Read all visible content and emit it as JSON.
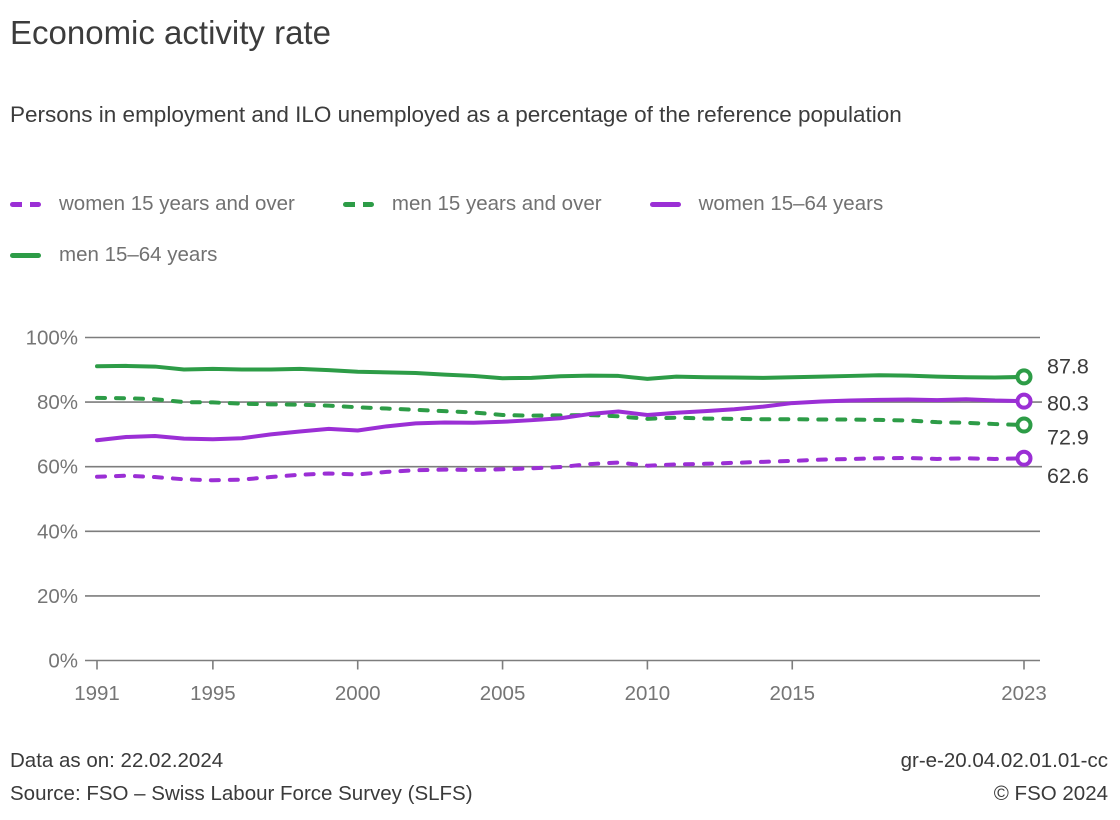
{
  "title": "Economic activity rate",
  "subtitle": "Persons in employment and ILO unemployed as a percentage of the reference population",
  "colors": {
    "women": "#9b2fd5",
    "men": "#2d9c47",
    "grid": "#7d7d7d",
    "tick_text": "#757575",
    "label_text": "#3c3c3c"
  },
  "legend": {
    "items": [
      {
        "label": "women 15 years and over",
        "color": "#9b2fd5",
        "style": "dashed"
      },
      {
        "label": "men 15 years and over",
        "color": "#2d9c47",
        "style": "dashed"
      },
      {
        "label": "women 15–64 years",
        "color": "#9b2fd5",
        "style": "solid"
      },
      {
        "label": "men 15–64 years",
        "color": "#2d9c47",
        "style": "solid"
      }
    ]
  },
  "chart_data": {
    "type": "line",
    "title": "Economic activity rate",
    "x": [
      1991,
      1992,
      1993,
      1994,
      1995,
      1996,
      1997,
      1998,
      1999,
      2000,
      2001,
      2002,
      2003,
      2004,
      2005,
      2006,
      2007,
      2008,
      2009,
      2010,
      2011,
      2012,
      2013,
      2014,
      2015,
      2016,
      2017,
      2018,
      2019,
      2020,
      2021,
      2022,
      2023
    ],
    "ylim": [
      0,
      100
    ],
    "grid": "horizontal",
    "legend_position": "top",
    "y_ticks": [
      {
        "value": 0,
        "label": "0%"
      },
      {
        "value": 20,
        "label": "20%"
      },
      {
        "value": 40,
        "label": "40%"
      },
      {
        "value": 60,
        "label": "60%"
      },
      {
        "value": 80,
        "label": "80%"
      },
      {
        "value": 100,
        "label": "100%"
      }
    ],
    "x_ticks": [
      {
        "value": 1991,
        "label": "1991"
      },
      {
        "value": 1995,
        "label": "1995"
      },
      {
        "value": 2000,
        "label": "2000"
      },
      {
        "value": 2005,
        "label": "2005"
      },
      {
        "value": 2010,
        "label": "2010"
      },
      {
        "value": 2015,
        "label": "2015"
      },
      {
        "value": 2023,
        "label": "2023"
      }
    ],
    "series": [
      {
        "name": "women 15 years and over",
        "color": "#9b2fd5",
        "dashed": true,
        "end_label": "62.6",
        "values": [
          56.9,
          57.2,
          56.8,
          56.1,
          55.8,
          56.0,
          56.8,
          57.5,
          57.9,
          57.6,
          58.4,
          58.9,
          59.1,
          59.0,
          59.2,
          59.5,
          59.9,
          60.8,
          61.3,
          60.3,
          60.7,
          60.9,
          61.2,
          61.5,
          61.8,
          62.2,
          62.4,
          62.6,
          62.7,
          62.4,
          62.6,
          62.4,
          62.6
        ]
      },
      {
        "name": "men 15 years and over",
        "color": "#2d9c47",
        "dashed": true,
        "end_label": "72.9",
        "values": [
          81.3,
          81.2,
          80.9,
          80.0,
          79.9,
          79.5,
          79.3,
          79.2,
          78.9,
          78.4,
          78.0,
          77.6,
          77.2,
          76.8,
          76.0,
          75.8,
          75.9,
          76.0,
          75.6,
          74.8,
          75.2,
          74.9,
          74.8,
          74.7,
          74.7,
          74.6,
          74.6,
          74.5,
          74.3,
          73.8,
          73.6,
          73.2,
          72.9
        ]
      },
      {
        "name": "women 15–64 years",
        "color": "#9b2fd5",
        "dashed": false,
        "end_label": "80.3",
        "values": [
          68.2,
          69.2,
          69.5,
          68.7,
          68.5,
          68.8,
          70.0,
          70.9,
          71.7,
          71.2,
          72.5,
          73.4,
          73.7,
          73.6,
          73.9,
          74.4,
          75.0,
          76.3,
          77.1,
          76.0,
          76.7,
          77.2,
          77.8,
          78.6,
          79.7,
          80.2,
          80.5,
          80.7,
          80.8,
          80.6,
          80.9,
          80.5,
          80.3
        ]
      },
      {
        "name": "men 15–64 years",
        "color": "#2d9c47",
        "dashed": false,
        "end_label": "87.8",
        "values": [
          91.1,
          91.2,
          91.0,
          90.1,
          90.3,
          90.1,
          90.1,
          90.3,
          89.9,
          89.4,
          89.2,
          89.0,
          88.5,
          88.1,
          87.4,
          87.5,
          88.0,
          88.2,
          88.1,
          87.2,
          87.9,
          87.7,
          87.6,
          87.5,
          87.7,
          87.9,
          88.1,
          88.3,
          88.2,
          87.9,
          87.7,
          87.6,
          87.8
        ]
      }
    ]
  },
  "footer": {
    "data_as_on": "Data as on: 22.02.2024",
    "source": "Source: FSO – Swiss Labour Force Survey (SLFS)",
    "reference": "gr-e-20.04.02.01.01-cc",
    "copyright": "© FSO 2024"
  }
}
